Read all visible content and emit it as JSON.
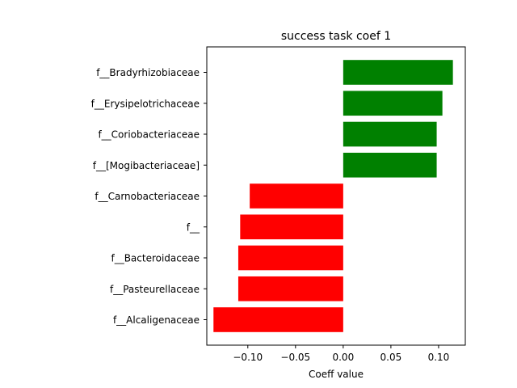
{
  "chart_data": {
    "type": "bar",
    "orientation": "horizontal",
    "title": "success task coef 1",
    "xlabel": "Coeff value",
    "ylabel": "",
    "xlim": [
      -0.143,
      0.128
    ],
    "xticks": [
      -0.1,
      -0.05,
      0.0,
      0.05,
      0.1
    ],
    "xtick_labels": [
      "−0.10",
      "−0.05",
      "0.00",
      "0.05",
      "0.10"
    ],
    "grid": false,
    "categories": [
      "f__Alcaligenaceae",
      "f__Pasteurellaceae",
      "f__Bacteroidaceae",
      "f__",
      "f__Carnobacteriaceae",
      "f__[Mogibacteriaceae]",
      "f__Coriobacteriaceae",
      "f__Erysipelotrichaceae",
      "f__Bradyrhizobiaceae"
    ],
    "values": [
      -0.136,
      -0.11,
      -0.11,
      -0.108,
      -0.098,
      0.098,
      0.098,
      0.104,
      0.115
    ],
    "positive_color": "#008000",
    "negative_color": "#ff0000"
  }
}
